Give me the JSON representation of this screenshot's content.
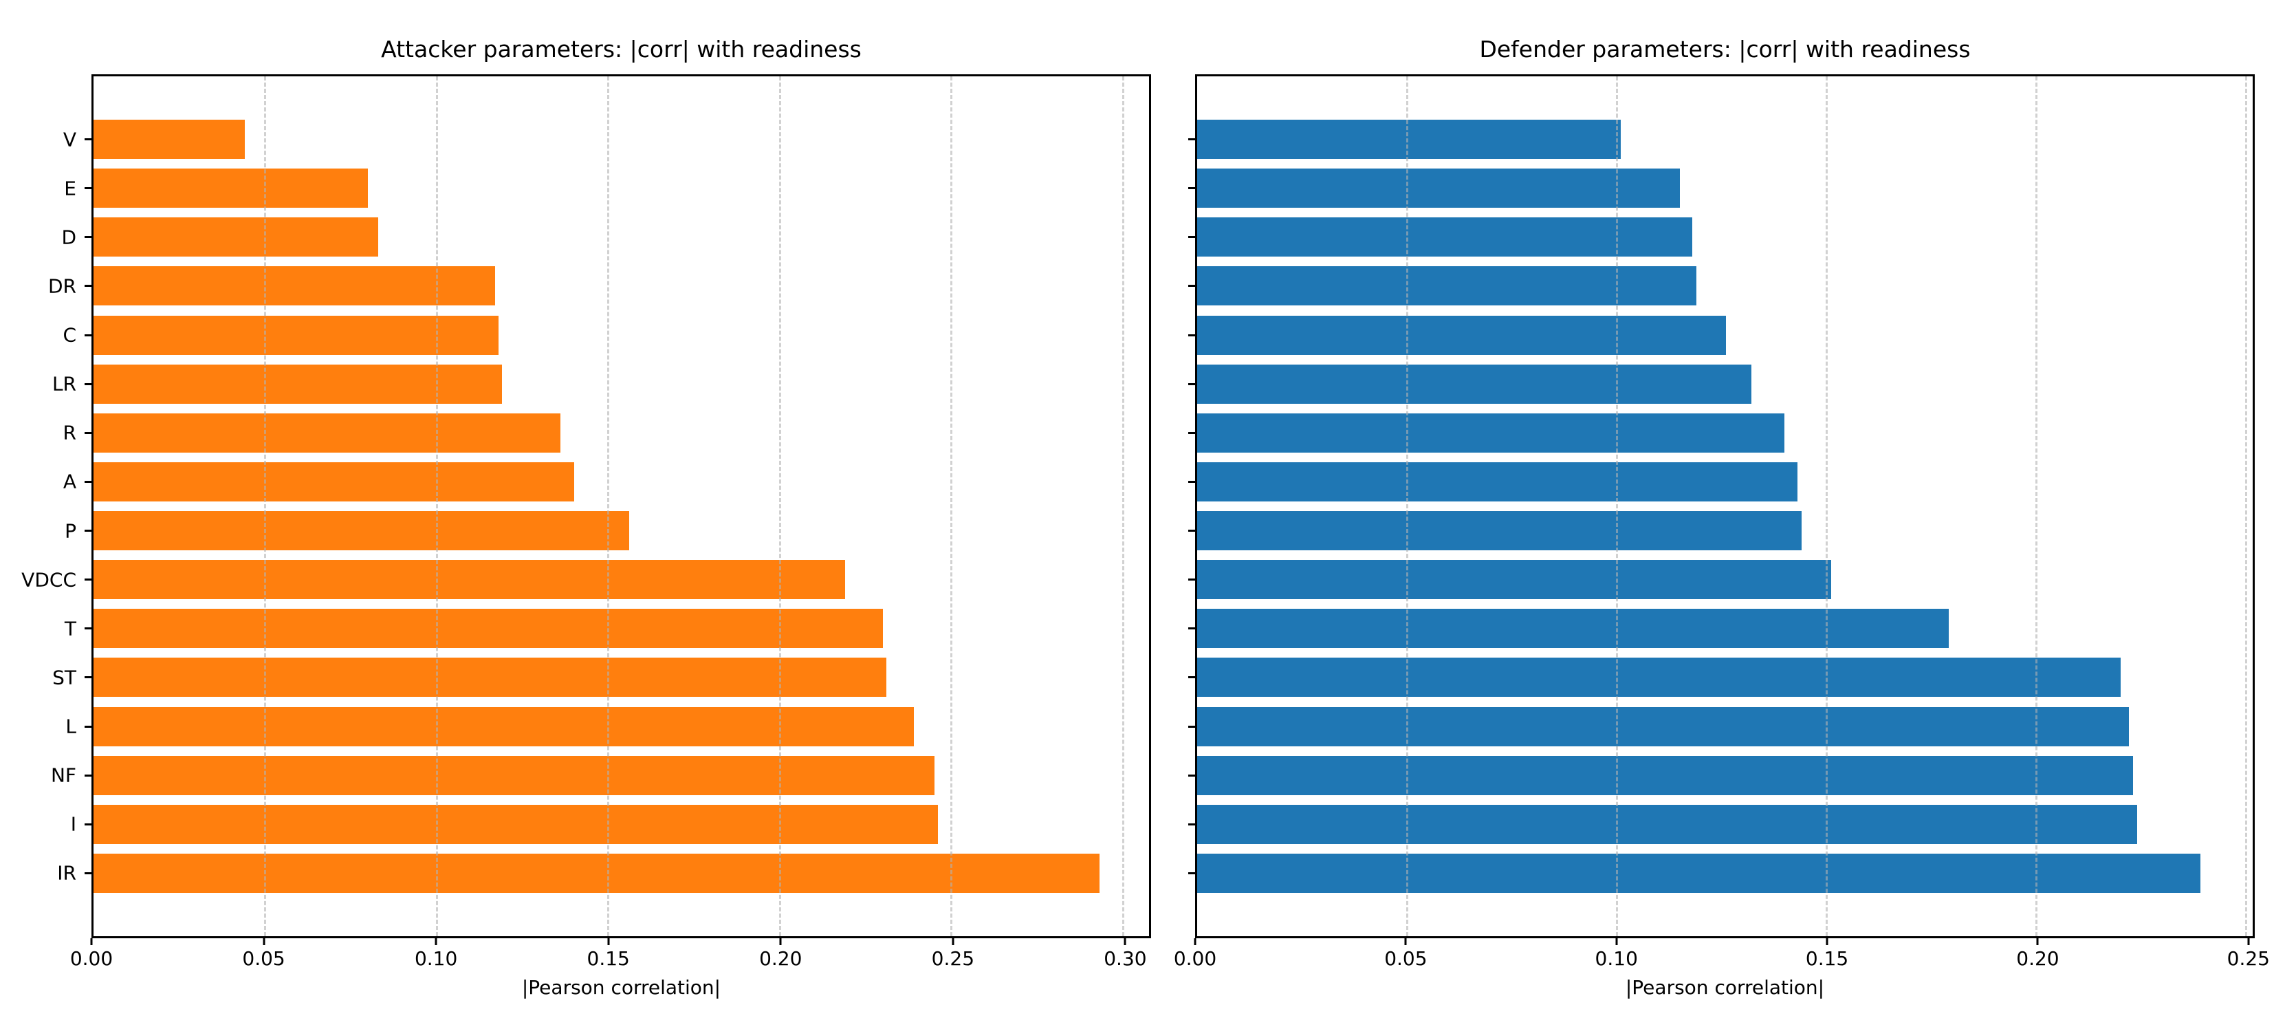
{
  "chart_data": [
    {
      "type": "bar",
      "orientation": "horizontal",
      "title": "Attacker parameters: |corr| with readiness",
      "xlabel": "|Pearson correlation|",
      "ylabel": "",
      "bar_color": "#ff7f0e",
      "grid": true,
      "categories": [
        "V",
        "E",
        "D",
        "DR",
        "C",
        "LR",
        "R",
        "A",
        "P",
        "VDCC",
        "T",
        "ST",
        "L",
        "NF",
        "I",
        "IR"
      ],
      "values": [
        0.044,
        0.08,
        0.083,
        0.117,
        0.118,
        0.119,
        0.136,
        0.14,
        0.156,
        0.219,
        0.23,
        0.231,
        0.239,
        0.245,
        0.246,
        0.293
      ],
      "xticks": [
        0,
        0.05,
        0.1,
        0.15,
        0.2,
        0.25,
        0.3
      ],
      "xtick_labels": [
        "0.00",
        "0.05",
        "0.10",
        "0.15",
        "0.20",
        "0.25",
        "0.30"
      ],
      "xlim": [
        0,
        0.3075
      ]
    },
    {
      "type": "bar",
      "orientation": "horizontal",
      "title": "Defender parameters: |corr| with readiness",
      "xlabel": "|Pearson correlation|",
      "ylabel": "",
      "bar_color": "#1f77b4",
      "grid": true,
      "categories": [
        "",
        "",
        "",
        "",
        "",
        "",
        "",
        "",
        "",
        "",
        "",
        "",
        "",
        "",
        "",
        ""
      ],
      "values": [
        0.101,
        0.115,
        0.118,
        0.119,
        0.126,
        0.132,
        0.14,
        0.143,
        0.144,
        0.151,
        0.179,
        0.22,
        0.222,
        0.223,
        0.224,
        0.239
      ],
      "xticks": [
        0,
        0.05,
        0.1,
        0.15,
        0.2,
        0.25
      ],
      "xtick_labels": [
        "0.00",
        "0.05",
        "0.10",
        "0.15",
        "0.20",
        "0.25"
      ],
      "xlim": [
        0,
        0.2515
      ]
    }
  ]
}
